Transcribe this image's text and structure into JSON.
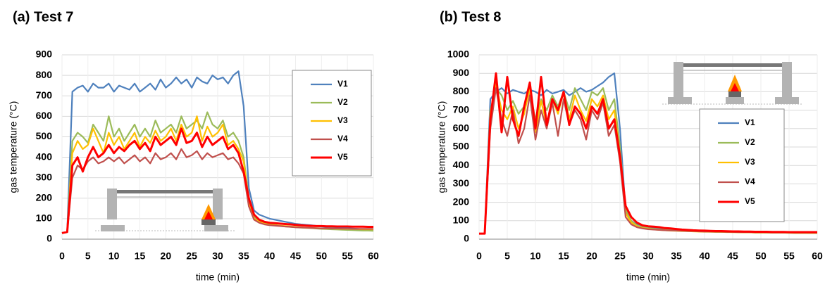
{
  "chart_data": [
    {
      "type": "line",
      "title": "(a) Test 7",
      "x_label": "time (min)",
      "y_label": "gas temperature (°C)",
      "x": [
        0,
        1,
        2,
        3,
        4,
        5,
        6,
        7,
        8,
        9,
        10,
        11,
        12,
        13,
        14,
        15,
        16,
        17,
        18,
        19,
        20,
        21,
        22,
        23,
        24,
        25,
        26,
        27,
        28,
        29,
        30,
        31,
        32,
        33,
        34,
        35,
        36,
        37,
        38,
        39,
        40,
        41,
        42,
        43,
        44,
        45,
        46,
        47,
        48,
        49,
        50,
        51,
        52,
        53,
        54,
        55,
        56,
        57,
        58,
        59,
        60
      ],
      "xlim": [
        0,
        60
      ],
      "xticks": [
        0,
        5,
        10,
        15,
        20,
        25,
        30,
        35,
        40,
        45,
        50,
        55,
        60
      ],
      "ylim": [
        0,
        900
      ],
      "yticks": [
        0,
        100,
        200,
        300,
        400,
        500,
        600,
        700,
        800,
        900
      ],
      "grid": true,
      "series": [
        {
          "name": "V1",
          "color": "#4f81bd",
          "values": [
            30,
            35,
            720,
            740,
            750,
            720,
            760,
            740,
            740,
            760,
            720,
            750,
            740,
            730,
            760,
            720,
            740,
            760,
            730,
            780,
            740,
            760,
            790,
            760,
            780,
            740,
            790,
            770,
            760,
            800,
            780,
            790,
            760,
            800,
            820,
            650,
            250,
            140,
            120,
            110,
            100,
            95,
            90,
            85,
            80,
            75,
            72,
            70,
            68,
            65,
            62,
            60,
            58,
            56,
            55,
            54,
            52,
            50,
            48,
            46,
            45
          ]
        },
        {
          "name": "V2",
          "color": "#9bbb59",
          "values": [
            30,
            35,
            480,
            520,
            500,
            470,
            560,
            520,
            480,
            600,
            500,
            540,
            480,
            520,
            560,
            500,
            540,
            500,
            580,
            520,
            540,
            560,
            520,
            600,
            540,
            560,
            580,
            540,
            620,
            560,
            540,
            580,
            500,
            520,
            480,
            400,
            200,
            110,
            90,
            80,
            75,
            70,
            65,
            62,
            60,
            58,
            56,
            55,
            54,
            52,
            50,
            49,
            48,
            47,
            46,
            45,
            44,
            43,
            42,
            42,
            41
          ]
        },
        {
          "name": "V3",
          "color": "#ffc000",
          "values": [
            30,
            35,
            420,
            480,
            440,
            460,
            540,
            480,
            420,
            520,
            460,
            500,
            440,
            480,
            520,
            450,
            500,
            470,
            530,
            480,
            500,
            540,
            480,
            560,
            500,
            520,
            600,
            480,
            550,
            500,
            520,
            560,
            460,
            480,
            440,
            380,
            180,
            100,
            85,
            75,
            70,
            68,
            66,
            64,
            62,
            60,
            58,
            56,
            55,
            54,
            53,
            52,
            52,
            51,
            50,
            50,
            49,
            49,
            48,
            48,
            48
          ]
        },
        {
          "name": "V4",
          "color": "#c0504d",
          "values": [
            30,
            35,
            300,
            360,
            340,
            380,
            400,
            370,
            380,
            400,
            380,
            400,
            370,
            390,
            410,
            380,
            400,
            370,
            420,
            390,
            400,
            420,
            390,
            440,
            400,
            410,
            430,
            390,
            420,
            400,
            410,
            420,
            390,
            400,
            370,
            320,
            160,
            95,
            80,
            72,
            68,
            66,
            64,
            62,
            60,
            58,
            57,
            56,
            55,
            54,
            53,
            53,
            52,
            52,
            51,
            51,
            50,
            50,
            50,
            50,
            50
          ]
        },
        {
          "name": "V5",
          "color": "#ff0000",
          "values": [
            30,
            35,
            360,
            400,
            330,
            400,
            450,
            400,
            420,
            460,
            420,
            450,
            430,
            460,
            480,
            440,
            470,
            430,
            500,
            460,
            480,
            500,
            460,
            540,
            470,
            480,
            520,
            450,
            500,
            460,
            480,
            500,
            440,
            460,
            420,
            330,
            200,
            120,
            95,
            85,
            80,
            78,
            76,
            74,
            72,
            70,
            68,
            66,
            65,
            64,
            64,
            63,
            63,
            62,
            62,
            62,
            61,
            61,
            61,
            60,
            60
          ]
        }
      ]
    },
    {
      "type": "line",
      "title": "(b) Test 8",
      "x_label": "time (min)",
      "y_label": "gas temperature (°C)",
      "x": [
        0,
        1,
        2,
        3,
        4,
        5,
        6,
        7,
        8,
        9,
        10,
        11,
        12,
        13,
        14,
        15,
        16,
        17,
        18,
        19,
        20,
        21,
        22,
        23,
        24,
        25,
        26,
        27,
        28,
        29,
        30,
        31,
        32,
        33,
        34,
        35,
        36,
        37,
        38,
        39,
        40,
        41,
        42,
        43,
        44,
        45,
        46,
        47,
        48,
        49,
        50,
        51,
        52,
        53,
        54,
        55,
        56,
        57,
        58,
        59,
        60
      ],
      "xlim": [
        0,
        60
      ],
      "xticks": [
        0,
        5,
        10,
        15,
        20,
        25,
        30,
        35,
        40,
        45,
        50,
        55,
        60
      ],
      "ylim": [
        0,
        1000
      ],
      "yticks": [
        0,
        100,
        200,
        300,
        400,
        500,
        600,
        700,
        800,
        900,
        1000
      ],
      "grid": true,
      "series": [
        {
          "name": "V1",
          "color": "#4f81bd",
          "values": [
            30,
            30,
            760,
            800,
            820,
            790,
            810,
            800,
            790,
            810,
            800,
            780,
            810,
            790,
            800,
            810,
            780,
            800,
            820,
            800,
            810,
            830,
            850,
            880,
            900,
            600,
            150,
            100,
            80,
            70,
            65,
            60,
            58,
            55,
            52,
            50,
            48,
            46,
            45,
            44,
            43,
            42,
            41,
            40,
            40,
            39,
            39,
            38,
            38,
            37,
            37,
            36,
            36,
            35,
            35,
            35,
            34,
            34,
            34,
            33,
            33
          ]
        },
        {
          "name": "V2",
          "color": "#9bbb59",
          "values": [
            30,
            30,
            700,
            820,
            780,
            700,
            750,
            680,
            720,
            800,
            650,
            760,
            700,
            780,
            720,
            800,
            700,
            820,
            760,
            700,
            800,
            780,
            820,
            700,
            760,
            500,
            160,
            100,
            75,
            65,
            60,
            56,
            53,
            50,
            48,
            46,
            45,
            44,
            43,
            42,
            41,
            40,
            40,
            39,
            39,
            38,
            38,
            37,
            37,
            36,
            36,
            36,
            35,
            35,
            35,
            34,
            34,
            34,
            34,
            33,
            33
          ]
        },
        {
          "name": "V3",
          "color": "#ffc000",
          "values": [
            30,
            30,
            680,
            840,
            700,
            650,
            720,
            600,
            680,
            820,
            580,
            750,
            620,
            760,
            680,
            800,
            650,
            780,
            700,
            640,
            760,
            720,
            780,
            650,
            700,
            450,
            140,
            90,
            70,
            60,
            56,
            53,
            50,
            48,
            46,
            45,
            44,
            43,
            42,
            41,
            40,
            40,
            39,
            39,
            38,
            38,
            37,
            37,
            37,
            36,
            36,
            36,
            35,
            35,
            35,
            35,
            34,
            34,
            34,
            34,
            34
          ]
        },
        {
          "name": "V4",
          "color": "#c0504d",
          "values": [
            30,
            30,
            600,
            820,
            650,
            560,
            700,
            520,
            600,
            780,
            540,
            700,
            600,
            740,
            560,
            760,
            620,
            700,
            650,
            540,
            700,
            650,
            740,
            560,
            620,
            420,
            120,
            80,
            65,
            58,
            54,
            52,
            50,
            48,
            47,
            46,
            45,
            44,
            43,
            42,
            41,
            41,
            40,
            40,
            39,
            39,
            38,
            38,
            38,
            37,
            37,
            37,
            36,
            36,
            36,
            36,
            35,
            35,
            35,
            35,
            35
          ]
        },
        {
          "name": "V5",
          "color": "#ff0000",
          "values": [
            30,
            30,
            650,
            900,
            580,
            880,
            650,
            560,
            720,
            850,
            600,
            880,
            620,
            760,
            700,
            800,
            620,
            720,
            680,
            600,
            720,
            680,
            760,
            600,
            650,
            450,
            180,
            120,
            90,
            75,
            70,
            68,
            65,
            60,
            58,
            55,
            52,
            50,
            48,
            47,
            46,
            45,
            44,
            44,
            43,
            42,
            42,
            41,
            41,
            40,
            40,
            40,
            39,
            39,
            39,
            38,
            38,
            38,
            38,
            38,
            38
          ]
        }
      ]
    }
  ]
}
